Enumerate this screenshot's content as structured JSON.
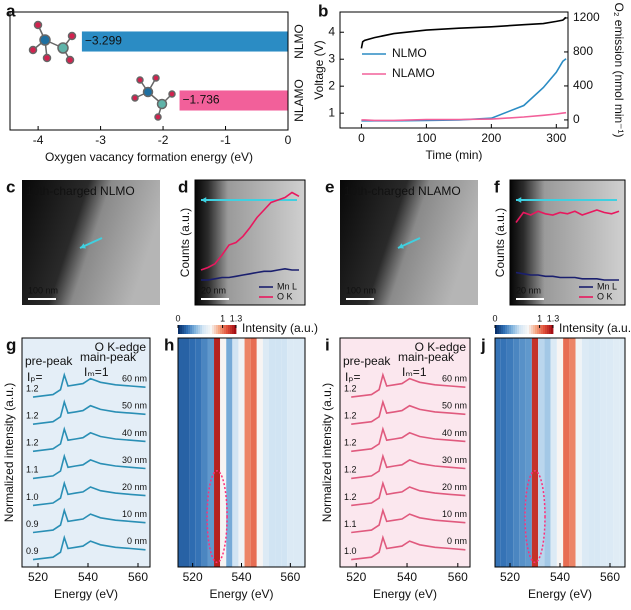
{
  "chart_data": [
    {
      "type": "bar",
      "label": "a",
      "categories": [
        "NLMO",
        "NLAMO"
      ],
      "values": [
        -3.299,
        -1.736
      ],
      "value_labels": [
        "−3.299",
        "−1.736"
      ],
      "colors": [
        "#2b8cc4",
        "#f2609a"
      ],
      "xlabel": "Oxygen vacancy formation energy (eV)",
      "xlim": [
        -4.45,
        0
      ],
      "xticks": [
        -4,
        -3,
        -2,
        -1,
        0
      ]
    },
    {
      "type": "line",
      "label": "b",
      "x": [
        0,
        2,
        5,
        20,
        50,
        100,
        150,
        200,
        250,
        280,
        300,
        310,
        315
      ],
      "xlim": [
        -33,
        318
      ],
      "xticks": [
        0,
        100,
        200,
        300
      ],
      "xlabel": "Time (min)",
      "ylabel": "Voltage (V)",
      "ylim": [
        0.45,
        4.75
      ],
      "yticks": [
        1,
        2,
        3,
        4
      ],
      "y2label": "O₂ emission (nmol min⁻¹)",
      "y2lim": [
        -95,
        1270
      ],
      "y2ticks": [
        0,
        400,
        800,
        1200
      ],
      "legend": "middle left",
      "series": [
        {
          "color": "#000000",
          "values": [
            3.4,
            3.65,
            3.7,
            3.8,
            3.95,
            4.08,
            4.15,
            4.2,
            4.28,
            4.32,
            4.4,
            4.45,
            4.55
          ]
        },
        {
          "name": "NLMO",
          "color": "#2b8cc4",
          "axis": "y2",
          "values": [
            -10,
            -10,
            -10,
            -10,
            -10,
            -5,
            0,
            20,
            170,
            380,
            560,
            690,
            720
          ]
        },
        {
          "name": "NLAMO",
          "color": "#f2609a",
          "axis": "y2",
          "values": [
            0,
            0,
            0,
            -5,
            -5,
            5,
            5,
            10,
            35,
            55,
            70,
            80,
            85
          ]
        }
      ]
    },
    {
      "type": "image",
      "label": "c",
      "caption": "10th-charged NLMO",
      "scale_bar": "100 nm"
    },
    {
      "type": "line",
      "label": "d",
      "ylabel": "Counts (a.u.)",
      "scale_bar": "20 nm",
      "ylim": [
        0,
        1
      ],
      "legend": "lower right",
      "series": [
        {
          "name": "Mn L",
          "color": "#1a1f6e",
          "values": [
            0.2,
            0.2,
            0.21,
            0.22,
            0.22,
            0.23,
            0.24,
            0.25,
            0.26,
            0.27,
            0.27,
            0.28,
            0.29,
            0.28,
            0.28
          ]
        },
        {
          "name": "O K",
          "color": "#e8185e",
          "values": [
            0.28,
            0.3,
            0.33,
            0.4,
            0.48,
            0.5,
            0.55,
            0.62,
            0.7,
            0.76,
            0.82,
            0.84,
            0.86,
            0.9,
            0.87
          ]
        }
      ]
    },
    {
      "type": "image",
      "label": "e",
      "caption": "10th-charged NLAMO",
      "scale_bar": "100 nm"
    },
    {
      "type": "line",
      "label": "f",
      "ylabel": "Counts (a.u.)",
      "scale_bar": "20 nm",
      "ylim": [
        0,
        1
      ],
      "legend": "lower right",
      "series": [
        {
          "name": "Mn L",
          "color": "#1a1f6e",
          "values": [
            0.26,
            0.25,
            0.24,
            0.24,
            0.23,
            0.23,
            0.22,
            0.22,
            0.22,
            0.21,
            0.21,
            0.21,
            0.2,
            0.2,
            0.2
          ]
        },
        {
          "name": "O K",
          "color": "#e8185e",
          "values": [
            0.66,
            0.74,
            0.72,
            0.75,
            0.73,
            0.72,
            0.74,
            0.73,
            0.75,
            0.72,
            0.74,
            0.76,
            0.74,
            0.73,
            0.75
          ]
        }
      ]
    },
    {
      "type": "line",
      "label": "g",
      "title": "O K-edge",
      "pre_peak": "pre-peak",
      "ip_text": "Iₚ=",
      "main_peak": "main-peak",
      "im_text": "Iₘ=1",
      "background": "#e4eef7",
      "xlabel": "Energy (eV)",
      "ylabel": "Normalized intensity (a.u.)",
      "x": [
        518,
        526,
        529,
        530.5,
        532,
        535,
        538,
        541,
        545,
        551,
        557,
        563
      ],
      "xlim": [
        513.6,
        564.8
      ],
      "xticks": [
        520,
        540,
        560
      ],
      "ylim": [
        0,
        9.3
      ],
      "series": [
        {
          "name": "60 nm",
          "ip_label": "1.2",
          "color": "#2a8fb5",
          "values": [
            6.9,
            7.0,
            7.2,
            7.8,
            7.35,
            7.4,
            7.45,
            7.65,
            7.5,
            7.4,
            7.35,
            7.3
          ]
        },
        {
          "name": "50 nm",
          "ip_label": "1.2",
          "color": "#2a8fb5",
          "values": [
            5.8,
            5.9,
            6.1,
            6.7,
            6.25,
            6.3,
            6.35,
            6.55,
            6.4,
            6.3,
            6.25,
            6.2
          ]
        },
        {
          "name": "40 nm",
          "ip_label": "1.2",
          "color": "#2a8fb5",
          "values": [
            4.7,
            4.8,
            5.0,
            5.6,
            5.15,
            5.2,
            5.25,
            5.45,
            5.3,
            5.2,
            5.15,
            5.1
          ]
        },
        {
          "name": "30 nm",
          "ip_label": "1.1",
          "color": "#2a8fb5",
          "values": [
            3.6,
            3.7,
            3.9,
            4.5,
            4.05,
            4.1,
            4.15,
            4.35,
            4.2,
            4.1,
            4.05,
            4.0
          ]
        },
        {
          "name": "20 nm",
          "ip_label": "1.0",
          "color": "#2a8fb5",
          "values": [
            2.5,
            2.6,
            2.8,
            3.4,
            2.95,
            3.0,
            3.05,
            3.25,
            3.1,
            3.0,
            2.95,
            2.9
          ]
        },
        {
          "name": "10 nm",
          "ip_label": "0.9",
          "color": "#2a8fb5",
          "values": [
            1.4,
            1.5,
            1.7,
            2.3,
            1.85,
            1.9,
            1.95,
            2.15,
            2.0,
            1.9,
            1.85,
            1.8
          ]
        },
        {
          "name": "0 nm",
          "ip_label": "0.9",
          "color": "#2a8fb5",
          "values": [
            0.3,
            0.4,
            0.6,
            1.2,
            0.75,
            0.8,
            0.85,
            1.05,
            0.9,
            0.8,
            0.75,
            0.7
          ]
        }
      ]
    },
    {
      "type": "heatmap",
      "label": "h",
      "x": [
        515,
        517.5,
        520,
        522.5,
        525,
        527.5,
        530,
        532.5,
        535,
        537.5,
        540,
        542.5,
        545,
        547.5,
        550,
        552.5,
        555,
        557.5,
        560,
        562.5,
        565
      ],
      "values": [
        0.15,
        0.15,
        0.18,
        0.2,
        0.25,
        0.3,
        1.25,
        0.75,
        0.35,
        0.55,
        0.7,
        1.0,
        1.05,
        0.75,
        0.6,
        0.55,
        0.55,
        0.55,
        0.6,
        0.6,
        0.6
      ],
      "xlim": [
        514,
        566
      ],
      "xticks": [
        520,
        540,
        560
      ],
      "xlabel": "Energy (eV)",
      "clim": [
        0,
        1.3
      ],
      "cticks": [
        0,
        1,
        1.3
      ],
      "clabel": "Intensity (a.u.)",
      "colormap": [
        "#08306b",
        "#2f6eb3",
        "#7fb2dc",
        "#d4e6f4",
        "#f7f7f7",
        "#f4a582",
        "#e0503a",
        "#a50f15"
      ]
    },
    {
      "type": "line",
      "label": "i",
      "title": "O K-edge",
      "pre_peak": "pre-peak",
      "ip_text": "Iₚ=",
      "main_peak": "main-peak",
      "im_text": "Iₘ=1",
      "background": "#fbe7ee",
      "xlabel": "Energy (eV)",
      "ylabel": "Normalized intensity (a.u.)",
      "x": [
        518,
        526,
        529,
        530.5,
        532,
        535,
        538,
        541,
        545,
        551,
        557,
        563
      ],
      "xlim": [
        513.6,
        564.8
      ],
      "xticks": [
        520,
        540,
        560
      ],
      "ylim": [
        0,
        9.3
      ],
      "series": [
        {
          "name": "60 nm",
          "ip_label": "1.2",
          "color": "#e05a7e",
          "values": [
            6.9,
            7.0,
            7.2,
            7.8,
            7.35,
            7.4,
            7.45,
            7.65,
            7.5,
            7.4,
            7.35,
            7.3
          ]
        },
        {
          "name": "50 nm",
          "ip_label": "1.2",
          "color": "#e05a7e",
          "values": [
            5.8,
            5.9,
            6.1,
            6.7,
            6.25,
            6.3,
            6.35,
            6.55,
            6.4,
            6.3,
            6.25,
            6.2
          ]
        },
        {
          "name": "40 nm",
          "ip_label": "1.2",
          "color": "#e05a7e",
          "values": [
            4.7,
            4.8,
            5.0,
            5.6,
            5.15,
            5.2,
            5.25,
            5.45,
            5.3,
            5.2,
            5.15,
            5.1
          ]
        },
        {
          "name": "30 nm",
          "ip_label": "1.2",
          "color": "#e05a7e",
          "values": [
            3.6,
            3.7,
            3.9,
            4.5,
            4.05,
            4.1,
            4.15,
            4.35,
            4.2,
            4.1,
            4.05,
            4.0
          ]
        },
        {
          "name": "20 nm",
          "ip_label": "1.2",
          "color": "#e05a7e",
          "values": [
            2.5,
            2.6,
            2.8,
            3.4,
            2.95,
            3.0,
            3.05,
            3.25,
            3.1,
            3.0,
            2.95,
            2.9
          ]
        },
        {
          "name": "10 nm",
          "ip_label": "1.1",
          "color": "#e05a7e",
          "values": [
            1.4,
            1.5,
            1.7,
            2.3,
            1.85,
            1.9,
            1.95,
            2.15,
            2.0,
            1.9,
            1.85,
            1.8
          ]
        },
        {
          "name": "0 nm",
          "ip_label": "1.0",
          "color": "#e05a7e",
          "values": [
            0.3,
            0.4,
            0.6,
            1.2,
            0.75,
            0.8,
            0.85,
            1.05,
            0.9,
            0.8,
            0.75,
            0.7
          ]
        }
      ]
    },
    {
      "type": "heatmap",
      "label": "j",
      "x": [
        515,
        517.5,
        520,
        522.5,
        525,
        527.5,
        530,
        532.5,
        535,
        537.5,
        540,
        542.5,
        545,
        547.5,
        550,
        552.5,
        555,
        557.5,
        560,
        562.5,
        565
      ],
      "values": [
        0.2,
        0.2,
        0.22,
        0.25,
        0.28,
        0.3,
        1.2,
        0.5,
        0.45,
        0.6,
        0.75,
        1.05,
        1.0,
        0.7,
        0.6,
        0.58,
        0.58,
        0.6,
        0.6,
        0.62,
        0.62
      ],
      "xlim": [
        514,
        566
      ],
      "xticks": [
        520,
        540,
        560
      ],
      "xlabel": "Energy (eV)",
      "clim": [
        0,
        1.3
      ],
      "cticks": [
        0,
        1,
        1.3
      ],
      "clabel": "Intensity (a.u.)",
      "colormap": [
        "#08306b",
        "#2f6eb3",
        "#7fb2dc",
        "#d4e6f4",
        "#f7f7f7",
        "#f4a582",
        "#e0503a",
        "#a50f15"
      ]
    }
  ]
}
